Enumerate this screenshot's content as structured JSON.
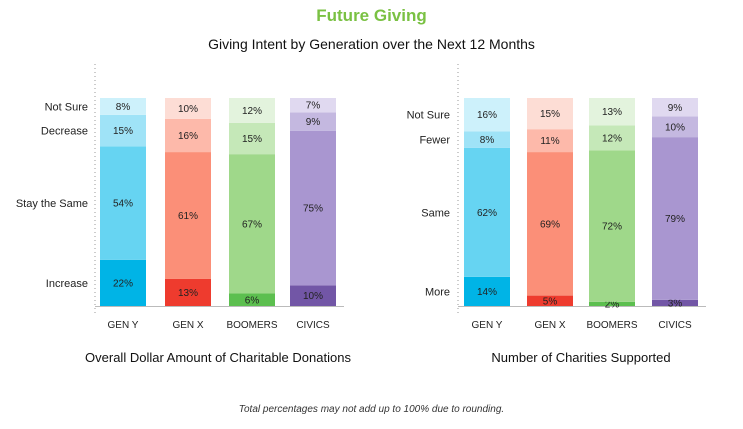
{
  "title": "Future Giving",
  "subtitle": "Giving Intent by Generation over the Next 12 Months",
  "note": "Total percentages may not add up to 100% due to rounding.",
  "chart_data": [
    {
      "type": "bar",
      "stacked": true,
      "xlabel": "Overall Dollar Amount of Charitable Donations",
      "categories": [
        "GEN Y",
        "GEN X",
        "BOOMERS",
        "CIVICS"
      ],
      "series": [
        {
          "name": "Increase",
          "values": [
            22,
            13,
            6,
            10
          ]
        },
        {
          "name": "Stay the Same",
          "values": [
            54,
            61,
            67,
            75
          ]
        },
        {
          "name": "Decrease",
          "values": [
            15,
            16,
            15,
            9
          ]
        },
        {
          "name": "Not Sure",
          "values": [
            8,
            10,
            12,
            7
          ]
        }
      ]
    },
    {
      "type": "bar",
      "stacked": true,
      "xlabel": "Number of Charities Supported",
      "categories": [
        "GEN Y",
        "GEN X",
        "BOOMERS",
        "CIVICS"
      ],
      "series": [
        {
          "name": "More",
          "values": [
            14,
            5,
            2,
            3
          ]
        },
        {
          "name": "Same",
          "values": [
            62,
            69,
            72,
            79
          ]
        },
        {
          "name": "Fewer",
          "values": [
            8,
            11,
            12,
            10
          ]
        },
        {
          "name": "Not Sure",
          "values": [
            16,
            15,
            13,
            9
          ]
        }
      ]
    }
  ],
  "colors": {
    "GEN Y": [
      "#00b4e6",
      "#66d4f2",
      "#9fe3f7",
      "#cdf1fb"
    ],
    "GEN X": [
      "#ee3b2e",
      "#fb8f78",
      "#fdb9aa",
      "#fdddd5"
    ],
    "BOOMERS": [
      "#5cbf4f",
      "#9fd88a",
      "#c5e8b8",
      "#e3f3dd"
    ],
    "CIVICS": [
      "#7256a6",
      "#a996d0",
      "#c4b8e0",
      "#e0d9f0"
    ]
  }
}
